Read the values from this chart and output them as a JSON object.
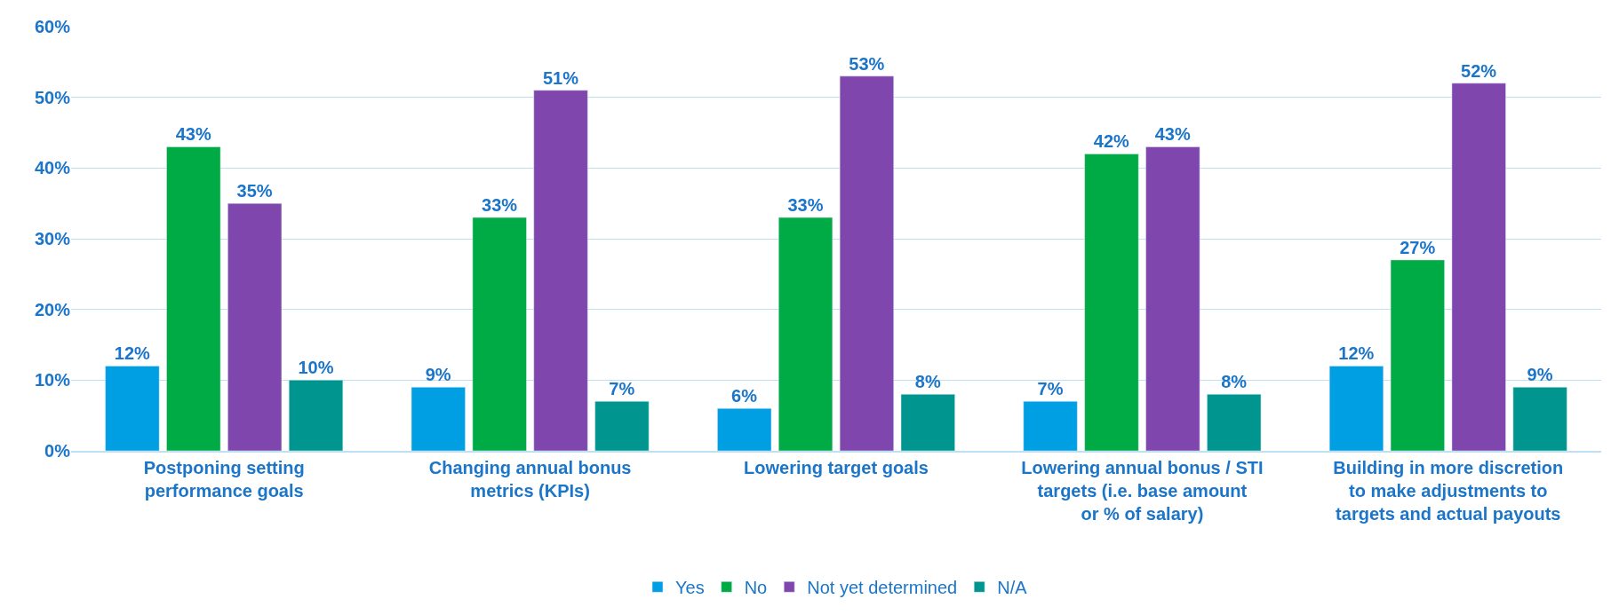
{
  "chart_data": {
    "type": "bar",
    "categories": [
      "Postponing setting performance goals",
      "Changing annual bonus metrics (KPIs)",
      "Lowering target goals",
      "Lowering annual bonus / STI targets (i.e. base amount or % of salary)",
      "Building in more discretion to make adjustments to targets and actual payouts"
    ],
    "series": [
      {
        "name": "Yes",
        "color": "#009fe3",
        "values": [
          12,
          9,
          6,
          7,
          12
        ]
      },
      {
        "name": "No",
        "color": "#00ab45",
        "values": [
          43,
          33,
          33,
          42,
          27
        ]
      },
      {
        "name": "Not yet determined",
        "color": "#7f47ad",
        "values": [
          35,
          51,
          53,
          43,
          52
        ]
      },
      {
        "name": "N/A",
        "color": "#00968f",
        "values": [
          10,
          7,
          8,
          8,
          9
        ]
      }
    ],
    "value_labels": [
      [
        "12%",
        "9%",
        "6%",
        "7%",
        "12%"
      ],
      [
        "43%",
        "33%",
        "33%",
        "42%",
        "27%"
      ],
      [
        "35%",
        "51%",
        "53%",
        "43%",
        "52%"
      ],
      [
        "10%",
        "7%",
        "8%",
        "8%",
        "9%"
      ]
    ],
    "ylim": [
      0,
      60
    ],
    "yticks": [
      {
        "value": 0,
        "label": "0%"
      },
      {
        "value": 10,
        "label": "10%"
      },
      {
        "value": 20,
        "label": "20%"
      },
      {
        "value": 30,
        "label": "30%"
      },
      {
        "value": 40,
        "label": "40%"
      },
      {
        "value": 50,
        "label": "50%"
      },
      {
        "value": 60,
        "label": "60%"
      }
    ],
    "grid": "y",
    "legend": "bottom"
  }
}
